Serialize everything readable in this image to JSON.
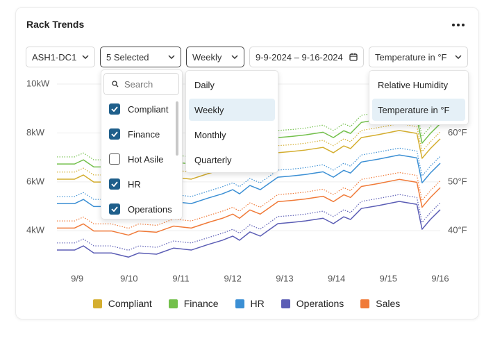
{
  "header": {
    "title": "Rack Trends"
  },
  "filters": {
    "site": "ASH1-DC1",
    "groups": "5 Selected",
    "period": "Weekly",
    "date_range": "9-9-2024 – 9-16-2024",
    "metric": "Temperature in °F"
  },
  "groups_menu": {
    "search_placeholder": "Search",
    "options": [
      {
        "label": "Compliant",
        "checked": true
      },
      {
        "label": "Finance",
        "checked": true
      },
      {
        "label": "Hot Asile",
        "checked": false
      },
      {
        "label": "HR",
        "checked": true
      },
      {
        "label": "Operations",
        "checked": true
      }
    ]
  },
  "period_menu": {
    "options": [
      "Daily",
      "Weekly",
      "Monthly",
      "Quarterly"
    ],
    "selected": 1
  },
  "metric_menu": {
    "options": [
      "Relative Humidity",
      "Temperature in °F"
    ],
    "selected": 1
  },
  "chart_data": {
    "type": "line",
    "grid": true,
    "x": [
      -0.39,
      -0.05,
      0.12,
      0.32,
      0.66,
      0.99,
      1.19,
      1.53,
      1.86,
      2.2,
      2.53,
      2.8,
      3.0,
      3.13,
      3.33,
      3.53,
      3.87,
      4.14,
      4.4,
      4.74,
      4.94,
      5.14,
      5.27,
      5.48,
      5.81,
      6.21,
      6.55,
      6.65,
      6.81,
      7.0
    ],
    "xlim": [
      -0.39,
      7.0
    ],
    "xticks": [
      {
        "value": 0,
        "label": "9/9"
      },
      {
        "value": 1,
        "label": "9/10"
      },
      {
        "value": 2,
        "label": "9/11"
      },
      {
        "value": 3,
        "label": "9/12"
      },
      {
        "value": 4,
        "label": "9/13"
      },
      {
        "value": 5,
        "label": "9/14"
      },
      {
        "value": 6,
        "label": "9/15"
      },
      {
        "value": 7,
        "label": "9/16"
      }
    ],
    "ylim": [
      2.6,
      10.35
    ],
    "yticks": [
      {
        "value": 4,
        "label": "4kW"
      },
      {
        "value": 6,
        "label": "6kW"
      },
      {
        "value": 8,
        "label": "8kW"
      },
      {
        "value": 10,
        "label": "10kW"
      }
    ],
    "y2lim": [
      33,
      71.75
    ],
    "y2ticks": [
      {
        "value": 40,
        "label": "40°F"
      },
      {
        "value": 50,
        "label": "50°F"
      },
      {
        "value": 60,
        "label": "60°F"
      }
    ],
    "series": [
      {
        "name": "Compliant",
        "color": "#d4ae2f",
        "values": [
          6.11,
          6.11,
          6.28,
          5.99,
          5.99,
          5.82,
          5.99,
          5.94,
          6.19,
          6.11,
          6.34,
          6.51,
          6.68,
          6.51,
          6.85,
          6.68,
          7.19,
          7.24,
          7.3,
          7.41,
          7.19,
          7.47,
          7.36,
          7.81,
          7.93,
          8.1,
          7.98,
          6.96,
          7.36,
          7.76
        ],
        "temperature": [
          52.0,
          52.0,
          52.8,
          51.4,
          51.4,
          50.5,
          51.4,
          51.1,
          52.4,
          52.0,
          53.1,
          54.0,
          54.8,
          54.0,
          55.7,
          54.8,
          57.4,
          57.6,
          57.9,
          58.5,
          57.4,
          58.8,
          58.2,
          60.5,
          61.1,
          61.9,
          61.3,
          56.2,
          58.2,
          60.2
        ]
      },
      {
        "name": "Finance",
        "color": "#73c04b",
        "values": [
          6.73,
          6.73,
          6.9,
          6.61,
          6.61,
          6.44,
          6.61,
          6.56,
          6.81,
          6.73,
          6.96,
          7.13,
          7.3,
          7.13,
          7.47,
          7.3,
          7.81,
          7.86,
          7.92,
          8.03,
          7.81,
          8.09,
          7.98,
          8.43,
          8.55,
          8.72,
          8.6,
          7.58,
          7.98,
          8.38
        ],
        "temperature": [
          55.1,
          55.1,
          55.9,
          54.5,
          54.5,
          53.6,
          54.5,
          54.2,
          55.5,
          55.1,
          56.2,
          57.1,
          57.9,
          57.1,
          58.8,
          57.9,
          60.5,
          60.7,
          61.0,
          61.6,
          60.5,
          61.9,
          61.3,
          63.6,
          64.2,
          65.0,
          64.4,
          59.3,
          61.3,
          63.3
        ]
      },
      {
        "name": "HR",
        "color": "#3b8fd4",
        "values": [
          5.11,
          5.11,
          5.28,
          4.99,
          4.99,
          4.82,
          4.99,
          4.94,
          5.19,
          5.11,
          5.34,
          5.51,
          5.68,
          5.51,
          5.85,
          5.68,
          6.19,
          6.24,
          6.3,
          6.41,
          6.19,
          6.47,
          6.36,
          6.81,
          6.93,
          7.1,
          6.98,
          5.96,
          6.36,
          6.76
        ],
        "temperature": [
          47.0,
          47.0,
          47.8,
          46.4,
          46.4,
          45.5,
          46.4,
          46.1,
          47.4,
          47.0,
          48.1,
          49.0,
          49.8,
          49.0,
          50.7,
          49.8,
          52.4,
          52.6,
          52.9,
          53.5,
          52.4,
          53.8,
          53.2,
          55.5,
          56.1,
          56.9,
          56.3,
          51.2,
          53.2,
          55.2
        ]
      },
      {
        "name": "Operations",
        "color": "#5b5db5",
        "values": [
          3.21,
          3.21,
          3.38,
          3.09,
          3.09,
          2.92,
          3.09,
          3.04,
          3.29,
          3.21,
          3.44,
          3.61,
          3.78,
          3.61,
          3.95,
          3.78,
          4.29,
          4.34,
          4.4,
          4.51,
          4.29,
          4.57,
          4.46,
          4.91,
          5.03,
          5.2,
          5.08,
          4.06,
          4.46,
          4.86
        ],
        "temperature": [
          37.5,
          37.5,
          38.3,
          36.9,
          36.9,
          36.0,
          36.9,
          36.6,
          37.9,
          37.5,
          38.6,
          39.5,
          40.3,
          39.5,
          41.2,
          40.3,
          42.9,
          43.1,
          43.4,
          44.0,
          42.9,
          44.3,
          43.7,
          46.0,
          46.6,
          47.4,
          46.8,
          41.7,
          43.7,
          45.7
        ]
      },
      {
        "name": "Sales",
        "color": "#f07a38",
        "values": [
          4.11,
          4.11,
          4.28,
          3.99,
          3.99,
          3.82,
          3.99,
          3.94,
          4.19,
          4.11,
          4.34,
          4.51,
          4.68,
          4.51,
          4.85,
          4.68,
          5.19,
          5.24,
          5.3,
          5.41,
          5.19,
          5.47,
          5.36,
          5.81,
          5.93,
          6.1,
          5.98,
          4.96,
          5.36,
          5.76
        ],
        "temperature": [
          42.0,
          42.0,
          42.8,
          41.4,
          41.4,
          40.5,
          41.4,
          41.1,
          42.4,
          42.0,
          43.1,
          44.0,
          44.8,
          44.0,
          45.7,
          44.8,
          47.4,
          47.6,
          47.9,
          48.5,
          47.4,
          48.8,
          48.2,
          50.5,
          51.1,
          51.9,
          51.3,
          46.2,
          48.2,
          50.2
        ]
      }
    ]
  }
}
